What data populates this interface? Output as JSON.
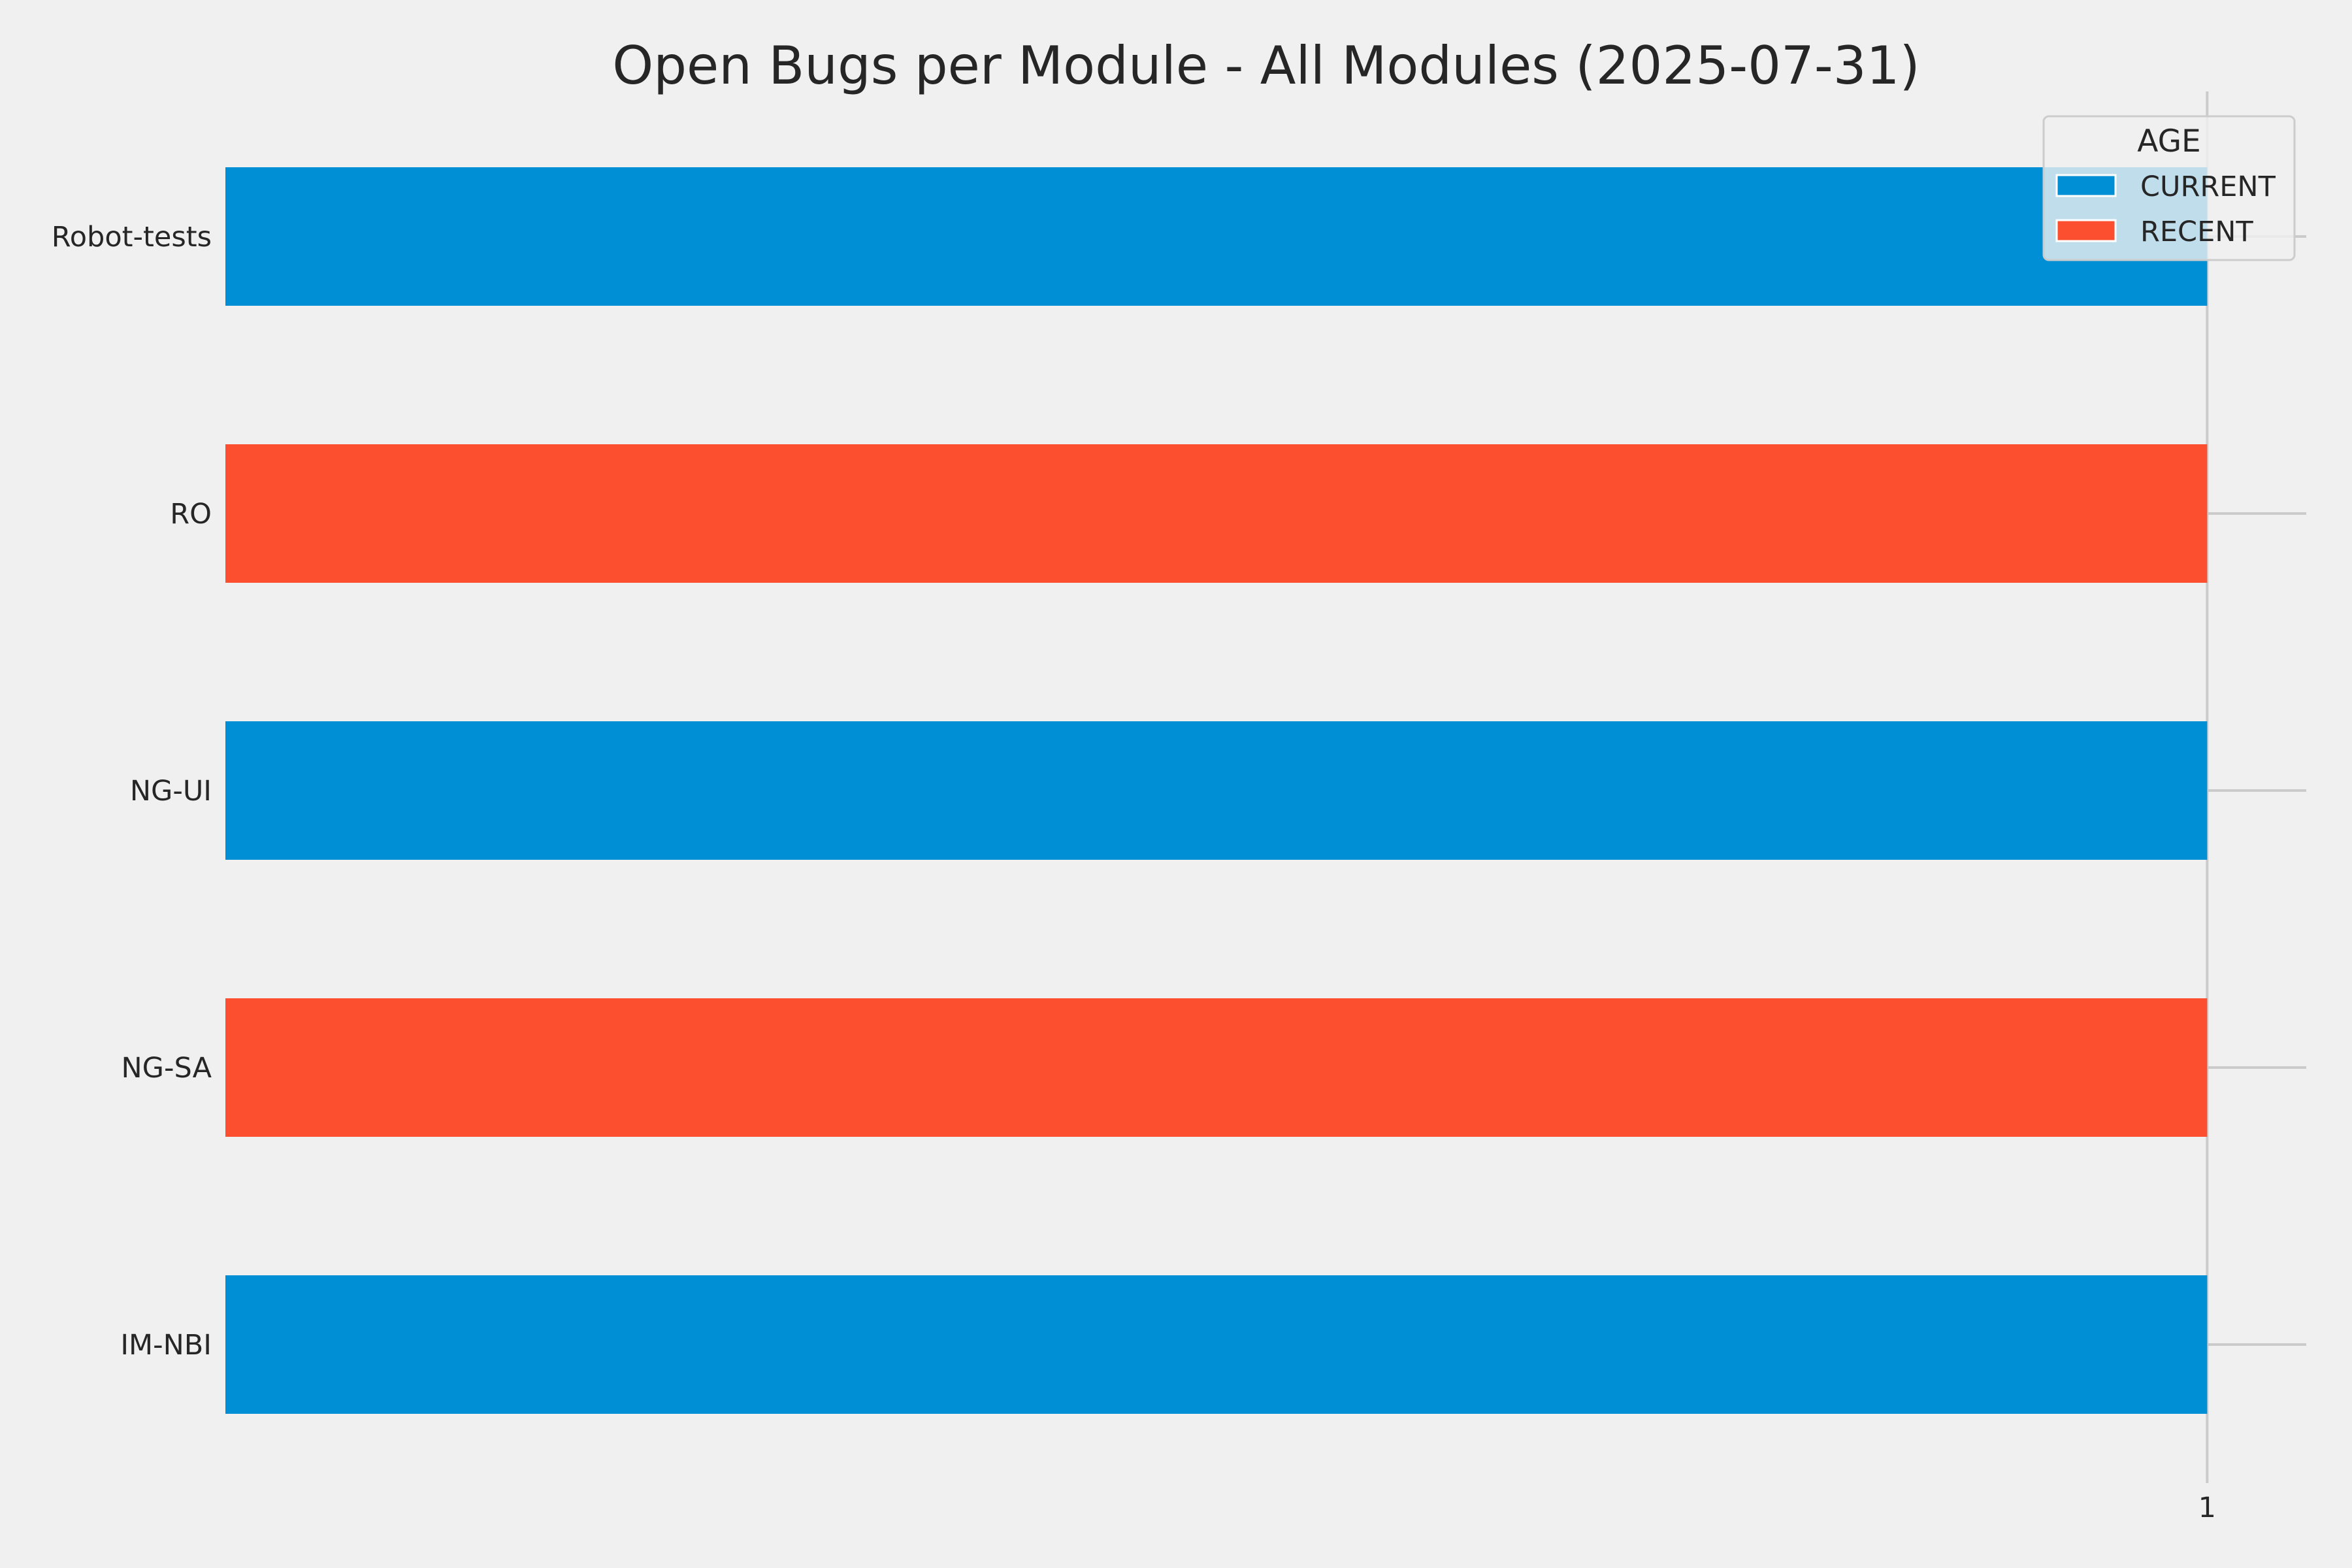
{
  "chart_data": {
    "type": "bar",
    "orientation": "horizontal",
    "title": "Open Bugs per Module - All Modules (2025-07-31)",
    "xlabel": "",
    "ylabel": "",
    "categories": [
      "Robot-tests",
      "RO",
      "NG-UI",
      "NG-SA",
      "IM-NBI"
    ],
    "values": [
      1,
      1,
      1,
      1,
      1
    ],
    "bar_group": [
      "CURRENT",
      "RECENT",
      "CURRENT",
      "RECENT",
      "CURRENT"
    ],
    "x_ticks": [
      "1"
    ],
    "xlim": [
      0,
      1.05
    ],
    "grid": true,
    "legend": {
      "title": "AGE",
      "position": "top-right",
      "entries": [
        {
          "label": "CURRENT",
          "color": "#008fd5"
        },
        {
          "label": "RECENT",
          "color": "#fc4f30"
        }
      ]
    }
  }
}
